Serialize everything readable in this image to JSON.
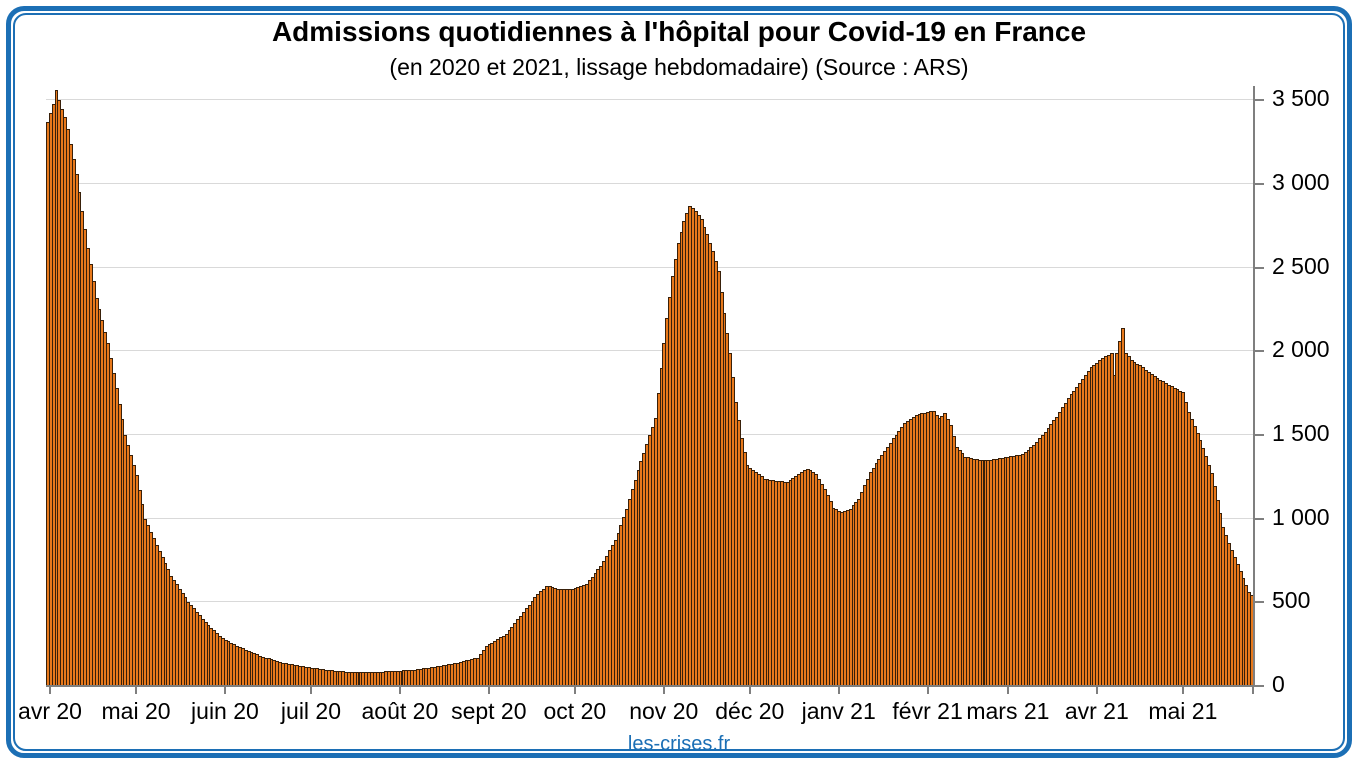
{
  "header": {
    "title": "Admissions quotidiennes à l'hôpital pour Covid-19 en France",
    "subtitle": "(en 2020 et 2021, lissage hebdomadaire) (Source : ARS)"
  },
  "footer": {
    "site": "les-crises.fr"
  },
  "chart_data": {
    "type": "bar",
    "title": "Admissions quotidiennes à l'hôpital pour Covid-19 en France",
    "subtitle": "(en 2020 et 2021, lissage hebdomadaire) (Source : ARS)",
    "xlabel": "",
    "ylabel": "",
    "ylim": [
      0,
      3586
    ],
    "grid": true,
    "y_axis_side": "right",
    "y_ticks": [
      {
        "value": 0,
        "label": "0"
      },
      {
        "value": 500,
        "label": "500"
      },
      {
        "value": 1000,
        "label": "1 000"
      },
      {
        "value": 1500,
        "label": "1 500"
      },
      {
        "value": 2000,
        "label": "2 000"
      },
      {
        "value": 2500,
        "label": "2 500"
      },
      {
        "value": 3000,
        "label": "3 000"
      },
      {
        "value": 3500,
        "label": "3 500"
      }
    ],
    "x_months": [
      {
        "label": "avr 20",
        "day": 0
      },
      {
        "label": "mai 20",
        "day": 30
      },
      {
        "label": "juin 20",
        "day": 61
      },
      {
        "label": "juil 20",
        "day": 91
      },
      {
        "label": "août 20",
        "day": 122
      },
      {
        "label": "sept 20",
        "day": 153
      },
      {
        "label": "oct 20",
        "day": 183
      },
      {
        "label": "nov 20",
        "day": 214
      },
      {
        "label": "déc 20",
        "day": 244
      },
      {
        "label": "janv 21",
        "day": 275
      },
      {
        "label": "févr 21",
        "day": 306
      },
      {
        "label": "mars 21",
        "day": 334
      },
      {
        "label": "avr 21",
        "day": 365
      },
      {
        "label": "mai 21",
        "day": 395
      }
    ],
    "total_days": 421,
    "series_name": "admissions quotidiennes (lissage hebdomadaire)",
    "anchors": [
      [
        0,
        3370
      ],
      [
        2,
        3480
      ],
      [
        3,
        3560
      ],
      [
        4,
        3500
      ],
      [
        6,
        3400
      ],
      [
        7,
        3330
      ],
      [
        10,
        3060
      ],
      [
        14,
        2620
      ],
      [
        17,
        2320
      ],
      [
        21,
        2050
      ],
      [
        24,
        1780
      ],
      [
        27,
        1500
      ],
      [
        31,
        1260
      ],
      [
        34,
        1000
      ],
      [
        38,
        845
      ],
      [
        43,
        660
      ],
      [
        49,
        505
      ],
      [
        55,
        380
      ],
      [
        61,
        285
      ],
      [
        68,
        225
      ],
      [
        75,
        175
      ],
      [
        82,
        140
      ],
      [
        91,
        112
      ],
      [
        98,
        95
      ],
      [
        105,
        85
      ],
      [
        112,
        82
      ],
      [
        122,
        90
      ],
      [
        129,
        100
      ],
      [
        136,
        118
      ],
      [
        143,
        140
      ],
      [
        150,
        170
      ],
      [
        153,
        240
      ],
      [
        160,
        310
      ],
      [
        165,
        420
      ],
      [
        170,
        530
      ],
      [
        174,
        600
      ],
      [
        178,
        580
      ],
      [
        183,
        578
      ],
      [
        188,
        610
      ],
      [
        193,
        720
      ],
      [
        198,
        870
      ],
      [
        202,
        1060
      ],
      [
        206,
        1290
      ],
      [
        210,
        1500
      ],
      [
        212,
        1600
      ],
      [
        214,
        1900
      ],
      [
        216,
        2200
      ],
      [
        218,
        2450
      ],
      [
        220,
        2650
      ],
      [
        222,
        2780
      ],
      [
        224,
        2870
      ],
      [
        226,
        2840
      ],
      [
        228,
        2790
      ],
      [
        230,
        2700
      ],
      [
        232,
        2600
      ],
      [
        234,
        2480
      ],
      [
        236,
        2230
      ],
      [
        238,
        1990
      ],
      [
        240,
        1700
      ],
      [
        242,
        1480
      ],
      [
        244,
        1320
      ],
      [
        246,
        1290
      ],
      [
        250,
        1240
      ],
      [
        254,
        1225
      ],
      [
        258,
        1220
      ],
      [
        262,
        1270
      ],
      [
        265,
        1300
      ],
      [
        268,
        1270
      ],
      [
        271,
        1180
      ],
      [
        274,
        1065
      ],
      [
        277,
        1040
      ],
      [
        280,
        1060
      ],
      [
        283,
        1120
      ],
      [
        287,
        1280
      ],
      [
        291,
        1380
      ],
      [
        295,
        1480
      ],
      [
        299,
        1570
      ],
      [
        303,
        1620
      ],
      [
        305,
        1630
      ],
      [
        309,
        1645
      ],
      [
        311,
        1600
      ],
      [
        313,
        1630
      ],
      [
        315,
        1560
      ],
      [
        317,
        1430
      ],
      [
        320,
        1370
      ],
      [
        324,
        1355
      ],
      [
        328,
        1350
      ],
      [
        332,
        1360
      ],
      [
        336,
        1375
      ],
      [
        340,
        1385
      ],
      [
        344,
        1440
      ],
      [
        348,
        1520
      ],
      [
        352,
        1610
      ],
      [
        356,
        1720
      ],
      [
        360,
        1810
      ],
      [
        364,
        1905
      ],
      [
        368,
        1960
      ],
      [
        371,
        1990
      ],
      [
        372,
        1860
      ],
      [
        373,
        1990
      ],
      [
        375,
        2140
      ],
      [
        376,
        1990
      ],
      [
        378,
        1950
      ],
      [
        382,
        1905
      ],
      [
        386,
        1850
      ],
      [
        390,
        1810
      ],
      [
        394,
        1775
      ],
      [
        396,
        1755
      ],
      [
        398,
        1640
      ],
      [
        402,
        1470
      ],
      [
        406,
        1275
      ],
      [
        410,
        950
      ],
      [
        413,
        810
      ],
      [
        416,
        690
      ],
      [
        419,
        560
      ],
      [
        420,
        545
      ]
    ],
    "colors": {
      "bar_fill": "#E8791C",
      "bar_border": "#38200A",
      "gridline": "#D9D9D9",
      "axis": "#7F7F7F",
      "frame": "#1C6FB5",
      "footer_link": "#1B6FB5",
      "text": "#000000"
    }
  }
}
